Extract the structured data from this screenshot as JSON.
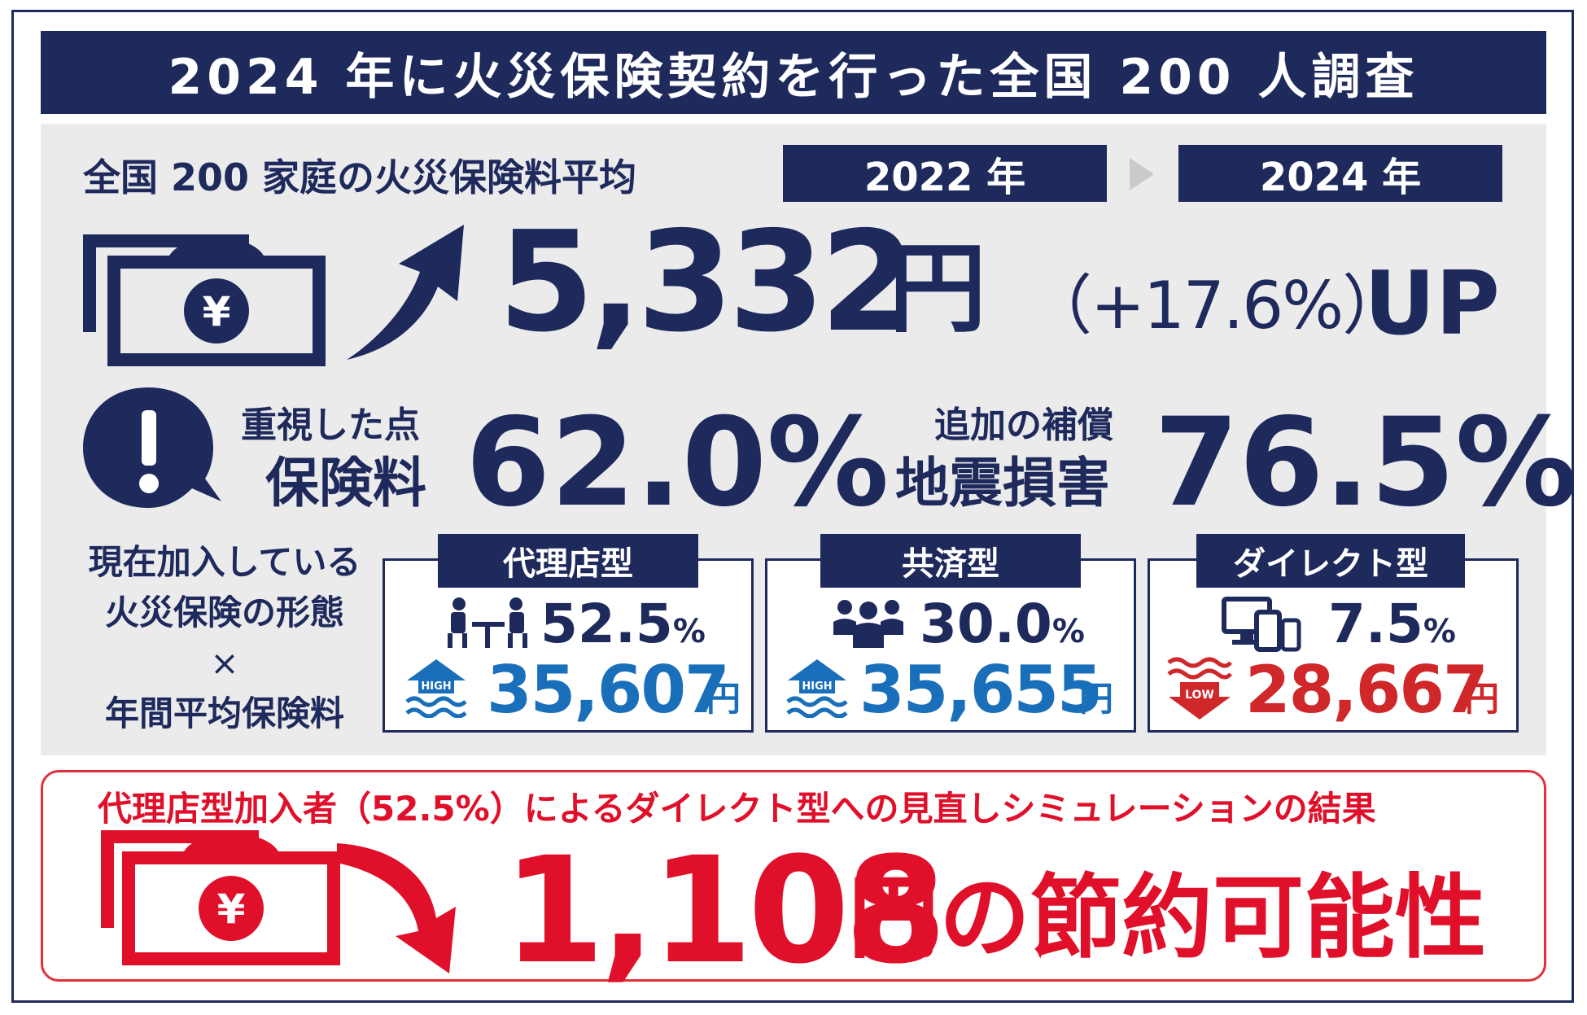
{
  "title": "2024 年に火災保険契約を行った全国 200 人調査",
  "premium_section": {
    "label": "全国 200 家庭の火災保険料平均",
    "year_from": "2022 年",
    "year_to": "2024 年",
    "increase_amount": "5,332",
    "yen": "円",
    "increase_pct": "（+17.6%）",
    "up": "UP",
    "colors": {
      "navy": "#1f2a5c",
      "gray": "#ebebec"
    }
  },
  "priorities": {
    "left_small": "重視した点",
    "left_label": "保険料",
    "left_pct": "62.0%",
    "right_small": "追加の補償",
    "right_label": "地震損害",
    "right_pct": "76.5%"
  },
  "forms": {
    "side_line1": "現在加入している",
    "side_line2": "火災保険の形態",
    "side_line3": "×",
    "side_line4": "年間平均保険料",
    "cards": [
      {
        "title": "代理店型",
        "pct": "52.5",
        "pct_sign": "%",
        "level": "HIGH",
        "price": "35,607",
        "yen": "円",
        "icon": "people-at-desk-icon",
        "color": "#1a6fba"
      },
      {
        "title": "共済型",
        "pct": "30.0",
        "pct_sign": "%",
        "level": "HIGH",
        "price": "35,655",
        "yen": "円",
        "icon": "group-people-icon",
        "color": "#1a6fba"
      },
      {
        "title": "ダイレクト型",
        "pct": "7.5",
        "pct_sign": "%",
        "level": "LOW",
        "price": "28,667",
        "yen": "円",
        "icon": "devices-icon",
        "color": "#d0272b"
      }
    ]
  },
  "result": {
    "heading": "代理店型加入者（52.5%）によるダイレクト型への見直しシミュレーションの結果",
    "amount": "1,108",
    "tail": "円の節約可能性",
    "color": "#e0102a"
  }
}
